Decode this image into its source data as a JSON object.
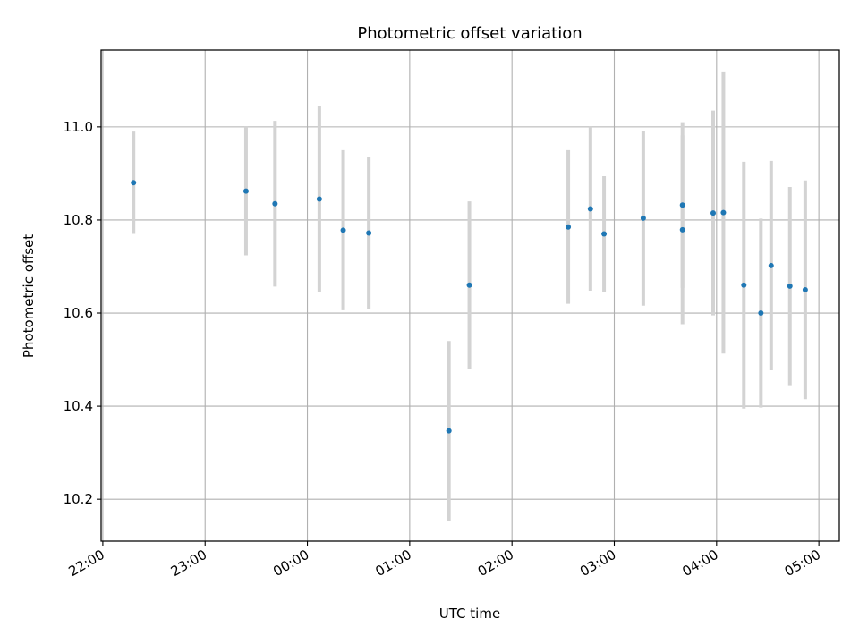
{
  "chart_data": {
    "type": "scatter",
    "title": "Photometric offset variation",
    "xlabel": "UTC time",
    "ylabel": "Photometric offset",
    "x_axis": {
      "kind": "time",
      "range": [
        "21:59",
        "05:12"
      ],
      "ticks": [
        "22:00",
        "23:00",
        "00:00",
        "01:00",
        "02:00",
        "03:00",
        "04:00",
        "05:00"
      ]
    },
    "y_axis": {
      "range": [
        10.11,
        11.165
      ],
      "ticks": [
        "10.2",
        "10.4",
        "10.6",
        "10.8",
        "11.0"
      ]
    },
    "grid": true,
    "colors": {
      "point": "#1f77b4",
      "errorbar": "#d3d3d3",
      "grid": "#b0b0b0"
    },
    "points": [
      {
        "x": "22:18",
        "y": 10.88,
        "err": 0.11
      },
      {
        "x": "23:24",
        "y": 10.862,
        "err": 0.138
      },
      {
        "x": "23:41",
        "y": 10.835,
        "err": 0.178
      },
      {
        "x": "00:07",
        "y": 10.845,
        "err": 0.2
      },
      {
        "x": "00:21",
        "y": 10.778,
        "err": 0.172
      },
      {
        "x": "00:36",
        "y": 10.772,
        "err": 0.163
      },
      {
        "x": "01:23",
        "y": 10.347,
        "err": 0.193
      },
      {
        "x": "01:35",
        "y": 10.66,
        "err": 0.18
      },
      {
        "x": "02:33",
        "y": 10.785,
        "err": 0.165
      },
      {
        "x": "02:46",
        "y": 10.824,
        "err": 0.176
      },
      {
        "x": "02:54",
        "y": 10.77,
        "err": 0.124
      },
      {
        "x": "03:17",
        "y": 10.804,
        "err": 0.188
      },
      {
        "x": "03:40",
        "y": 10.832,
        "err": 0.178
      },
      {
        "x": "03:40",
        "y": 10.779,
        "err": 0.203
      },
      {
        "x": "03:58",
        "y": 10.815,
        "err": 0.22
      },
      {
        "x": "04:04",
        "y": 10.816,
        "err": 0.303
      },
      {
        "x": "04:16",
        "y": 10.66,
        "err": 0.265
      },
      {
        "x": "04:26",
        "y": 10.6,
        "err": 0.203
      },
      {
        "x": "04:32",
        "y": 10.702,
        "err": 0.225
      },
      {
        "x": "04:43",
        "y": 10.658,
        "err": 0.213
      },
      {
        "x": "04:52",
        "y": 10.65,
        "err": 0.235
      }
    ]
  }
}
